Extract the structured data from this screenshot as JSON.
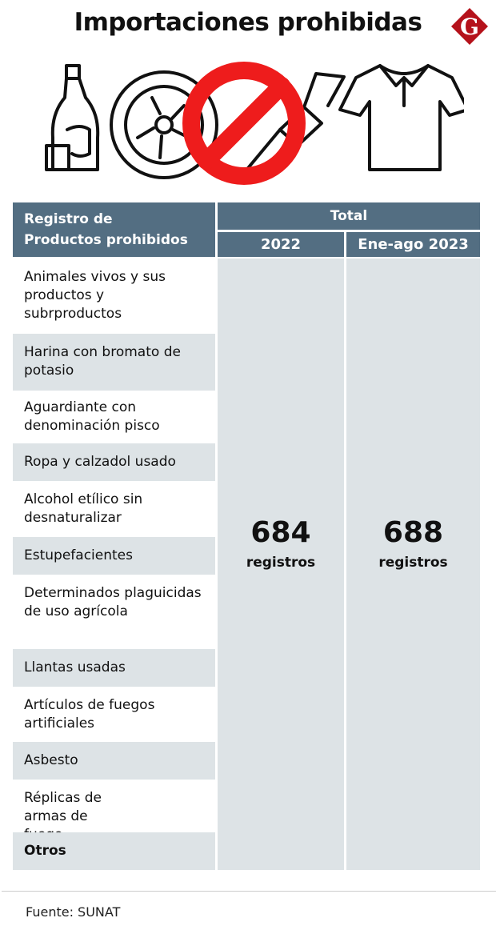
{
  "title": "Importaciones prohibidas",
  "logo": {
    "letter": "G",
    "color": "#b5121b"
  },
  "icons": [
    "liquor-bottle-icon",
    "tire-icon",
    "prohibited-icon",
    "firework-rocket-icon",
    "polo-shirt-icon"
  ],
  "colors": {
    "header": "#536e82",
    "cell": "#dde3e6",
    "prohibited": "#ee1c1c"
  },
  "table": {
    "header_left": [
      "Registro de",
      "Productos prohibidos"
    ],
    "header_group": "Total",
    "columns": [
      "2022",
      "Ene-ago 2023"
    ],
    "rows": [
      "Animales vivos y sus productos y subrproductos",
      "Harina con bromato de potasio",
      "Aguardiante con denominación pisco",
      "Ropa y calzadol usado",
      "Alcohol etílico sin desnaturalizar",
      "Estupefacientes",
      "Determinados plaguicidas de uso agrícola",
      "Llantas usadas",
      "Artículos de fuegos artificiales",
      "Asbesto",
      "Réplicas de armas de fuego",
      "Otros"
    ],
    "totals": [
      {
        "value": "684",
        "unit": "registros"
      },
      {
        "value": "688",
        "unit": "registros"
      }
    ]
  },
  "source": "Fuente: SUNAT"
}
